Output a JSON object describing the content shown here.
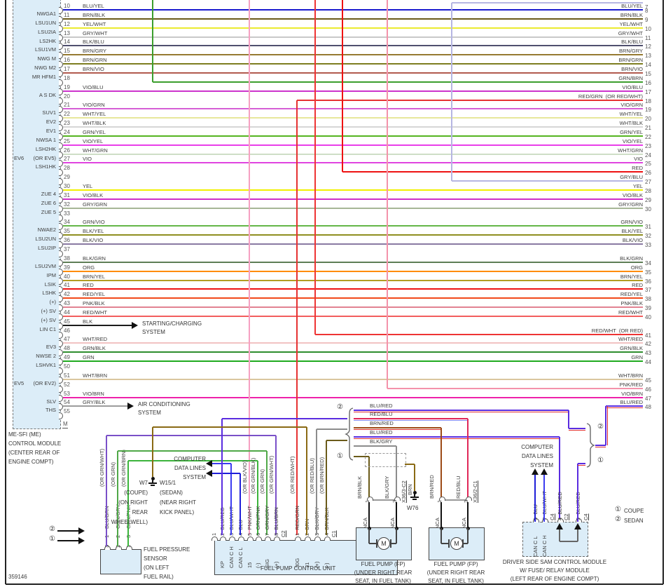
{
  "footer_id": "359146",
  "top_partial_row": {
    "right_num": "7",
    "color": "#b6b6e2"
  },
  "left_module": {
    "caption": [
      "ME-SFI (ME)",
      "CONTROL MODULE",
      "(CENTER REAR OF",
      "ENGINE COMPT)"
    ],
    "ev6": "EV6",
    "ev5": "EV5",
    "m_pin": "M"
  },
  "rows": [
    {
      "p": "10",
      "w": "BLU/YEL",
      "c": "#1a1ace",
      "rn": "8",
      "rl": "BLU/YEL"
    },
    {
      "p": "11",
      "w": "BRN/BLK",
      "c": "#6b5b1a",
      "rn": "9",
      "rl": "BRN/BLK"
    },
    {
      "p": "12",
      "w": "YEL/WHT",
      "c": "#ebeb30",
      "rn": "10",
      "rl": "YEL/WHT"
    },
    {
      "p": "13",
      "w": "GRY/WHT",
      "c": "#c9c9c9",
      "rn": "11",
      "rl": "GRY/WHT"
    },
    {
      "p": "14",
      "w": "BLK/BLU",
      "c": "#50506e",
      "rn": "12",
      "rl": "BLK/BLU"
    },
    {
      "p": "15",
      "w": "BRN/GRY",
      "c": "#967a32",
      "rn": "13",
      "rl": "BRN/GRY"
    },
    {
      "p": "16",
      "w": "BRN/GRN",
      "c": "#7d7d20",
      "rn": "14",
      "rl": "BRN/GRN"
    },
    {
      "p": "17",
      "w": "BRN/VIO",
      "c": "#b25a4e",
      "rn": "15",
      "rl": "BRN/VIO"
    },
    {
      "p": "18",
      "w": "",
      "c": "#3c9e2d",
      "rn": "16",
      "rl": "GRN/BRN",
      "src": 218
    },
    {
      "p": "19",
      "w": "VIO/BLU",
      "c": "#cd34cd",
      "rn": "17",
      "rl": "VIO/BLU"
    },
    {
      "p": "20",
      "w": "",
      "c": "#e63232",
      "rn": "18",
      "rl": "RED/GRN  (OR RED/WHT)",
      "src": 424
    },
    {
      "p": "21",
      "w": "VIO/GRN",
      "c": "#d55fd5",
      "rn": "19",
      "rl": "VIO/GRN"
    },
    {
      "p": "22",
      "w": "WHT/YEL",
      "c": "#e7e79c",
      "rn": "20",
      "rl": "WHT/YEL"
    },
    {
      "p": "23",
      "w": "WHT/BLK",
      "c": "#d6d6d6",
      "rn": "21",
      "rl": "WHT/BLK"
    },
    {
      "p": "24",
      "w": "GRN/YEL",
      "c": "#55b520",
      "rn": "22",
      "rl": "GRN/YEL"
    },
    {
      "p": "25",
      "w": "VIO/YEL",
      "c": "#e93ee9",
      "rn": "23",
      "rl": "VIO/YEL"
    },
    {
      "p": "26",
      "w": "WHT/GRN",
      "c": "#cedec6",
      "rn": "24",
      "rl": "WHT/GRN"
    },
    {
      "p": "27",
      "w": "VIO",
      "c": "#e044e0",
      "rn": "25",
      "rl": "VIO"
    },
    {
      "p": "28",
      "w": "",
      "c": "#ee1212",
      "rn": "26",
      "rl": "RED",
      "src": 489
    },
    {
      "p": "29",
      "w": "",
      "c": "#b6b6e2",
      "rn": "27",
      "rl": "GRY/BLU",
      "src": 645
    },
    {
      "p": "30",
      "w": "YEL",
      "c": "#f0f000",
      "rn": "28",
      "rl": "YEL"
    },
    {
      "p": "31",
      "w": "VIO/BLK",
      "c": "#cd2fc9",
      "rn": "29",
      "rl": "VIO/BLK"
    },
    {
      "p": "32",
      "w": "GRY/GRN",
      "c": "#a6b696",
      "rn": "30",
      "rl": "GRY/GRN"
    },
    {
      "p": "33",
      "w": ""
    },
    {
      "p": "34",
      "w": "GRN/VIO",
      "c": "#64b648",
      "rn": "31",
      "rl": "GRN/VIO"
    },
    {
      "p": "35",
      "w": "BLK/YEL",
      "c": "#8f8f20",
      "rn": "32",
      "rl": "BLK/YEL"
    },
    {
      "p": "36",
      "w": "BLK/VIO",
      "c": "#8a7aa2",
      "rn": "33",
      "rl": "BLK/VIO"
    },
    {
      "p": "37",
      "w": ""
    },
    {
      "p": "38",
      "w": "BLK/GRN",
      "c": "#5e7e56",
      "rn": "34",
      "rl": "BLK/GRN"
    },
    {
      "p": "39",
      "w": "ORG",
      "c": "#ff8c00",
      "rn": "35",
      "rl": "ORG"
    },
    {
      "p": "40",
      "w": "BRN/YEL",
      "c": "#b29c22",
      "rn": "36",
      "rl": "BRN/YEL"
    },
    {
      "p": "41",
      "w": "RED",
      "c": "#ee1212",
      "rn": "37",
      "rl": "RED"
    },
    {
      "p": "42",
      "w": "RED/YEL",
      "c": "#f24a1a",
      "rn": "38",
      "rl": "RED/YEL"
    },
    {
      "p": "43",
      "w": "PNK/BLK",
      "c": "#e28292",
      "rn": "39",
      "rl": "PNK/BLK"
    },
    {
      "p": "44",
      "w": "RED/WHT",
      "c": "#f25e5e",
      "rn": "40",
      "rl": "RED/WHT"
    },
    {
      "p": "45",
      "w": "BLK",
      "c": "#1c1c1c",
      "arrow": "starting"
    },
    {
      "p": "46",
      "w": "",
      "c": "#ee3434",
      "rn": "41",
      "rl": "RED/WHT  (OR RED)",
      "src": 450
    },
    {
      "p": "47",
      "w": "WHT/RED",
      "c": "#f2c2c2",
      "rn": "42",
      "rl": "WHT/RED"
    },
    {
      "p": "48",
      "w": "GRN/BLK",
      "c": "#2e8e2e",
      "rn": "43",
      "rl": "GRN/BLK"
    },
    {
      "p": "49",
      "w": "GRN",
      "c": "#20aa20",
      "rn": "44",
      "rl": "GRN"
    },
    {
      "p": "50",
      "w": ""
    },
    {
      "p": "51",
      "w": "WHT/BRN",
      "c": "#dac69e",
      "rn": "45",
      "rl": "WHT/BRN"
    },
    {
      "p": "52",
      "w": "",
      "c": "#f492aa",
      "rn": "46",
      "rl": "PNK/RED",
      "src": 553
    },
    {
      "p": "53",
      "w": "VIO/BRN",
      "c": "#ee22aa",
      "rn": "47",
      "rl": "VIO/BRN"
    },
    {
      "p": "54",
      "w": "GRY/BLK",
      "c": "#9c9c9c",
      "arrow": "ac",
      "rn": "48",
      "rl": "BLU/RED",
      "src": 865,
      "rc": "#5a2ce0"
    },
    {
      "p": "55",
      "w": ""
    }
  ],
  "side_labels": [
    [
      "10",
      "NWGA1"
    ],
    [
      "11",
      "LSU1UN"
    ],
    [
      "12",
      "LSU2IA"
    ],
    [
      "13",
      "LS2HK"
    ],
    [
      "14",
      "LSU1VM"
    ],
    [
      "15",
      "NWG M"
    ],
    [
      "16",
      "NWG M2"
    ],
    [
      "17",
      "MR HFM1"
    ],
    [
      "19",
      "A S DK"
    ],
    [
      "21",
      "SUV1"
    ],
    [
      "22",
      "EV2"
    ],
    [
      "23",
      "EV1"
    ],
    [
      "24",
      "NWSA 1"
    ],
    [
      "25",
      "LSH2HK"
    ],
    [
      "26",
      "(OR EV5)"
    ],
    [
      "27",
      "LSH1HK"
    ],
    [
      "30",
      "ZUE 4"
    ],
    [
      "31",
      "ZUE 6"
    ],
    [
      "32",
      "ZUE 5"
    ],
    [
      "34",
      "NWAE2"
    ],
    [
      "35",
      "LSU2UN"
    ],
    [
      "36",
      "LSU2IP"
    ],
    [
      "38",
      "LSU2VM"
    ],
    [
      "39",
      "IPM"
    ],
    [
      "40",
      "LSIK"
    ],
    [
      "41",
      "LSHK"
    ],
    [
      "42",
      "(+)"
    ],
    [
      "43",
      "(+) SV"
    ],
    [
      "44",
      "(+) SV"
    ],
    [
      "45",
      "LIN C1"
    ],
    [
      "47",
      "EV3"
    ],
    [
      "48",
      "NWSE 2"
    ],
    [
      "49",
      "LSHVK1"
    ],
    [
      "51",
      "(OR EV2)"
    ],
    [
      "53",
      "SLV"
    ],
    [
      "54",
      "THS"
    ]
  ],
  "arrows": {
    "starting": [
      "STARTING/CHARGING",
      "SYSTEM"
    ],
    "ac": [
      "AIR CONDITIONING",
      "SYSTEM"
    ]
  },
  "data_lines_system": [
    "COMPUTER",
    "DATA LINES",
    "SYSTEM"
  ],
  "sensor": {
    "caption": [
      "FUEL PRESSURE",
      "SENSOR",
      "(ON LEFT",
      "FUEL RAIL)"
    ],
    "pins": [
      {
        "upper": "1",
        "lower": "3",
        "main": "BLU/BRN",
        "or": "(OR GRN/WHT)"
      },
      {
        "upper": "2",
        "lower": "2",
        "main": "GRN/GRY",
        "or": "(OR GRN)"
      },
      {
        "upper": "3",
        "lower": "1",
        "main": "GRN/PNK",
        "or": "(OR GRN/BRN)"
      }
    ]
  },
  "fpcu": {
    "caption": "FUEL PUMP CONTROL UNIT",
    "c2_label": "C2",
    "c1_label": "C1",
    "pins_c2": [
      {
        "n": "1",
        "main": "",
        "or": "",
        "sig": ""
      },
      {
        "n": "2",
        "main": "BLU/RED",
        "or": "",
        "sig": "KP"
      },
      {
        "n": "3",
        "main": "BLU/WHT",
        "or": "",
        "sig": "CAN C H"
      },
      {
        "n": "4",
        "main": "BLU",
        "or": "",
        "sig": "CAN C L"
      },
      {
        "n": "5",
        "main": "PNK/WHT",
        "or": "(OR BLK/VIO)",
        "sig": "15"
      },
      {
        "n": "6",
        "main": "GRN/PNK",
        "or": "(OR GRN/BLK)",
        "sig": "(-)"
      },
      {
        "n": "7",
        "main": "GRN/GRY",
        "or": "(OR GRN)",
        "sig": "SIG"
      },
      {
        "n": "8",
        "main": "BLU/BRN",
        "or": "(OR GRN/WHT)",
        "sig": "(+)"
      }
    ],
    "pins_c1": [
      {
        "n": "1",
        "main": "RED/GRN",
        "or": "(OR RED/WHT)",
        "sig": "30G"
      },
      {
        "n": "2",
        "main": "BRN",
        "or": "",
        "sig": "31"
      },
      {
        "n": "3",
        "main": "BLK/GRY",
        "or": "(OR RED/BLU)",
        "sig": "(+)"
      },
      {
        "n": "4",
        "main": "BRN/BLK",
        "or": "(OR BRN/RED)",
        "sig": "(-)"
      }
    ]
  },
  "grounds": {
    "w7_left": [
      "W7",
      "(COUPE)",
      "(ON RIGHT",
      "REAR",
      "WHEELWELL)"
    ],
    "w7_right": [
      "W15/1",
      "(SEDAN)",
      "(NEAR RIGHT",
      "KICK PANEL)"
    ],
    "w76": "W76",
    "w76_wire": "BRN"
  },
  "stack_wires": [
    "BLU/RED",
    "RED/BLU",
    "BRN/RED",
    "BLU/RED",
    "BLK/GRY"
  ],
  "pump1": {
    "caption": [
      "FUEL PUMP (FP)",
      "(UNDER RIGHT REAR",
      "SEAT, IN FUEL TANK)"
    ],
    "pin1": {
      "n": "1",
      "w": "BRN/BLK"
    },
    "pin3": {
      "n": "3",
      "w": "BLK/GRY"
    },
    "conn": "X36/3-C2",
    "nca": "NCA",
    "motor": "M"
  },
  "pump2": {
    "caption": [
      "FUEL PUMP (FP)",
      "(UNDER RIGHT REAR",
      "SEAT, IN FUEL TANK)"
    ],
    "pin1": {
      "n": "1",
      "w": "BRN/RED"
    },
    "pin3": {
      "n": "3",
      "w": "RED/BLU"
    },
    "conn": "X36/2-C1",
    "nca": "NCA",
    "motor": "M"
  },
  "sam": {
    "caption": [
      "DRIVER SIDE SAM CONTROL MODULE",
      "W/ FUSE/ RELAY MODULE",
      "(LEFT REAR OF ENGINE COMPT)"
    ],
    "pins": [
      {
        "n": "5",
        "w": "BLU"
      },
      {
        "n": "7",
        "w": "BLU/WHT"
      },
      {
        "conn": "C4"
      },
      {
        "n": "4",
        "w": "BLU/RED"
      },
      {
        "conn": "C2"
      },
      {
        "n": "9",
        "w": "BLU/RED"
      },
      {
        "conn": "C4"
      }
    ],
    "internal": [
      "CAN C L",
      "CAN C H"
    ]
  },
  "legend": [
    {
      "sym": "①",
      "label": "COUPE"
    },
    {
      "sym": "②",
      "label": "SEDAN"
    }
  ],
  "variant": {
    "coupe": "①",
    "sedan": "②"
  },
  "colors": {
    "blu_red": "#5a2ce0",
    "red_blu": "#e02858",
    "brn_red": "#9c4a16",
    "blk_gry": "#8c8c8c",
    "brn_blk": "#6b5b1a",
    "brn": "#8a6a14",
    "pnk_wht": "#f6a0c2",
    "blu_wht": "#3c3cf0",
    "blu": "#1e1ed8",
    "blu_brn": "#7a50c8",
    "grn_gry": "#50a848",
    "grn_pnk": "#3cb43c",
    "red": "#e63232",
    "box_fill": "#dcedf8",
    "border": "#333333"
  }
}
